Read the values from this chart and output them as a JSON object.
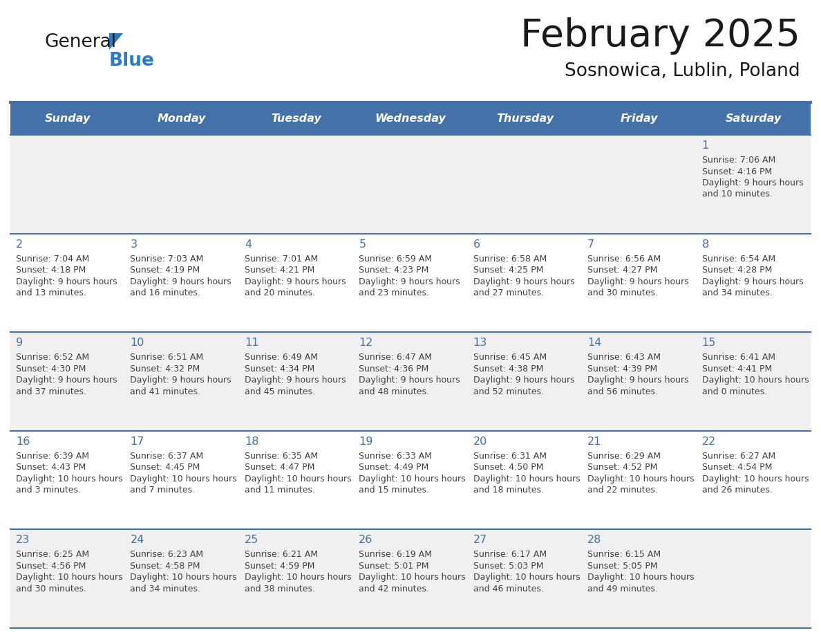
{
  "title": "February 2025",
  "subtitle": "Sosnowica, Lublin, Poland",
  "header_color": "#4472a8",
  "header_text_color": "#ffffff",
  "day_names": [
    "Sunday",
    "Monday",
    "Tuesday",
    "Wednesday",
    "Thursday",
    "Friday",
    "Saturday"
  ],
  "title_color": "#1a1a1a",
  "subtitle_color": "#1a1a1a",
  "cell_bg_light": "#f0f0f0",
  "cell_bg_white": "#ffffff",
  "line_color": "#4472a8",
  "day_number_color": "#4472a8",
  "text_color": "#404040",
  "calendar_data": [
    [
      null,
      null,
      null,
      null,
      null,
      null,
      {
        "day": 1,
        "sunrise": "7:06 AM",
        "sunset": "4:16 PM",
        "daylight": "9 hours and 10 minutes"
      }
    ],
    [
      {
        "day": 2,
        "sunrise": "7:04 AM",
        "sunset": "4:18 PM",
        "daylight": "9 hours and 13 minutes"
      },
      {
        "day": 3,
        "sunrise": "7:03 AM",
        "sunset": "4:19 PM",
        "daylight": "9 hours and 16 minutes"
      },
      {
        "day": 4,
        "sunrise": "7:01 AM",
        "sunset": "4:21 PM",
        "daylight": "9 hours and 20 minutes"
      },
      {
        "day": 5,
        "sunrise": "6:59 AM",
        "sunset": "4:23 PM",
        "daylight": "9 hours and 23 minutes"
      },
      {
        "day": 6,
        "sunrise": "6:58 AM",
        "sunset": "4:25 PM",
        "daylight": "9 hours and 27 minutes"
      },
      {
        "day": 7,
        "sunrise": "6:56 AM",
        "sunset": "4:27 PM",
        "daylight": "9 hours and 30 minutes"
      },
      {
        "day": 8,
        "sunrise": "6:54 AM",
        "sunset": "4:28 PM",
        "daylight": "9 hours and 34 minutes"
      }
    ],
    [
      {
        "day": 9,
        "sunrise": "6:52 AM",
        "sunset": "4:30 PM",
        "daylight": "9 hours and 37 minutes"
      },
      {
        "day": 10,
        "sunrise": "6:51 AM",
        "sunset": "4:32 PM",
        "daylight": "9 hours and 41 minutes"
      },
      {
        "day": 11,
        "sunrise": "6:49 AM",
        "sunset": "4:34 PM",
        "daylight": "9 hours and 45 minutes"
      },
      {
        "day": 12,
        "sunrise": "6:47 AM",
        "sunset": "4:36 PM",
        "daylight": "9 hours and 48 minutes"
      },
      {
        "day": 13,
        "sunrise": "6:45 AM",
        "sunset": "4:38 PM",
        "daylight": "9 hours and 52 minutes"
      },
      {
        "day": 14,
        "sunrise": "6:43 AM",
        "sunset": "4:39 PM",
        "daylight": "9 hours and 56 minutes"
      },
      {
        "day": 15,
        "sunrise": "6:41 AM",
        "sunset": "4:41 PM",
        "daylight": "10 hours and 0 minutes"
      }
    ],
    [
      {
        "day": 16,
        "sunrise": "6:39 AM",
        "sunset": "4:43 PM",
        "daylight": "10 hours and 3 minutes"
      },
      {
        "day": 17,
        "sunrise": "6:37 AM",
        "sunset": "4:45 PM",
        "daylight": "10 hours and 7 minutes"
      },
      {
        "day": 18,
        "sunrise": "6:35 AM",
        "sunset": "4:47 PM",
        "daylight": "10 hours and 11 minutes"
      },
      {
        "day": 19,
        "sunrise": "6:33 AM",
        "sunset": "4:49 PM",
        "daylight": "10 hours and 15 minutes"
      },
      {
        "day": 20,
        "sunrise": "6:31 AM",
        "sunset": "4:50 PM",
        "daylight": "10 hours and 18 minutes"
      },
      {
        "day": 21,
        "sunrise": "6:29 AM",
        "sunset": "4:52 PM",
        "daylight": "10 hours and 22 minutes"
      },
      {
        "day": 22,
        "sunrise": "6:27 AM",
        "sunset": "4:54 PM",
        "daylight": "10 hours and 26 minutes"
      }
    ],
    [
      {
        "day": 23,
        "sunrise": "6:25 AM",
        "sunset": "4:56 PM",
        "daylight": "10 hours and 30 minutes"
      },
      {
        "day": 24,
        "sunrise": "6:23 AM",
        "sunset": "4:58 PM",
        "daylight": "10 hours and 34 minutes"
      },
      {
        "day": 25,
        "sunrise": "6:21 AM",
        "sunset": "4:59 PM",
        "daylight": "10 hours and 38 minutes"
      },
      {
        "day": 26,
        "sunrise": "6:19 AM",
        "sunset": "5:01 PM",
        "daylight": "10 hours and 42 minutes"
      },
      {
        "day": 27,
        "sunrise": "6:17 AM",
        "sunset": "5:03 PM",
        "daylight": "10 hours and 46 minutes"
      },
      {
        "day": 28,
        "sunrise": "6:15 AM",
        "sunset": "5:05 PM",
        "daylight": "10 hours and 49 minutes"
      },
      null
    ]
  ]
}
